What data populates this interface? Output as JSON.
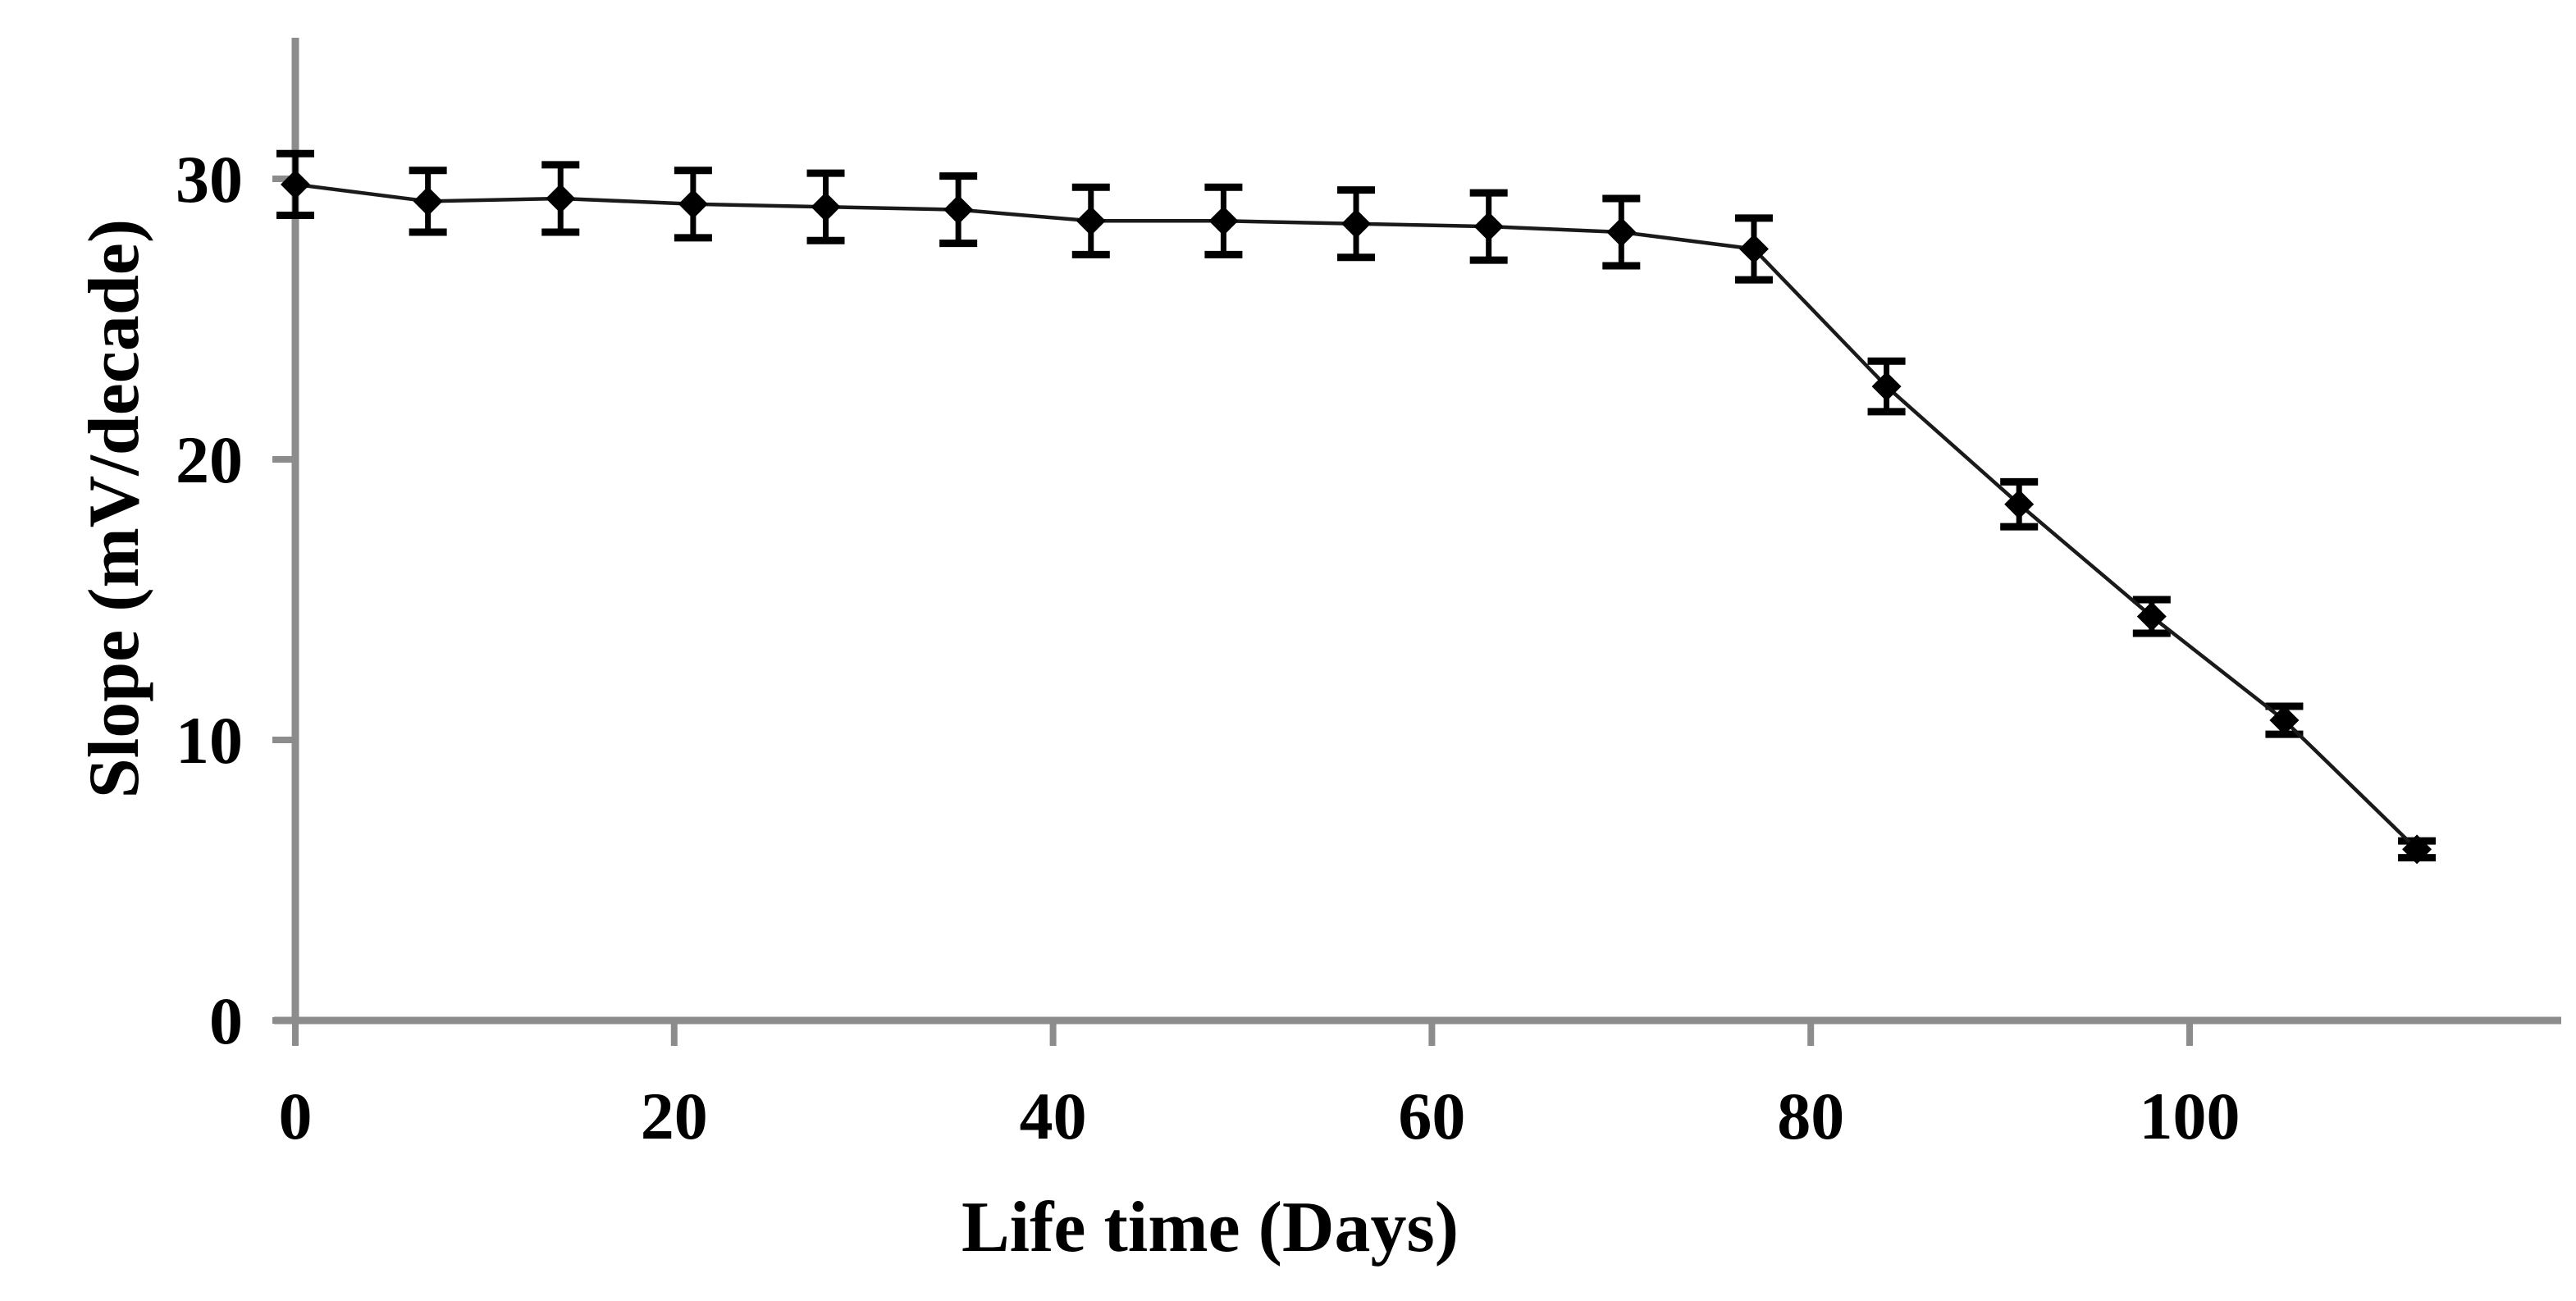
{
  "figure": {
    "background": "#ffffff",
    "axis_color": "#8c8c8c",
    "data_color": "#000000"
  },
  "chart_data": {
    "type": "line",
    "title": "",
    "xlabel": "Life time (Days)",
    "ylabel": "Slope (mV/decade)",
    "x": [
      0,
      7,
      14,
      21,
      28,
      35,
      42,
      49,
      56,
      63,
      70,
      77,
      84,
      91,
      98,
      105,
      112
    ],
    "series": [
      {
        "name": "Slope",
        "marker": "diamond",
        "color": "#000000",
        "values": [
          29.8,
          29.2,
          29.3,
          29.1,
          29.0,
          28.9,
          28.5,
          28.5,
          28.4,
          28.3,
          28.1,
          27.5,
          22.6,
          18.4,
          14.4,
          10.7,
          6.1
        ],
        "error_bars": [
          1.1,
          1.1,
          1.2,
          1.2,
          1.2,
          1.2,
          1.2,
          1.2,
          1.2,
          1.2,
          1.2,
          1.1,
          0.9,
          0.8,
          0.6,
          0.5,
          0.3
        ]
      }
    ],
    "xlim": [
      0,
      120
    ],
    "ylim": [
      0,
      35
    ],
    "xticks": [
      0,
      20,
      40,
      60,
      80,
      100
    ],
    "yticks": [
      0,
      10,
      20,
      30
    ],
    "grid": false,
    "legend": false
  }
}
